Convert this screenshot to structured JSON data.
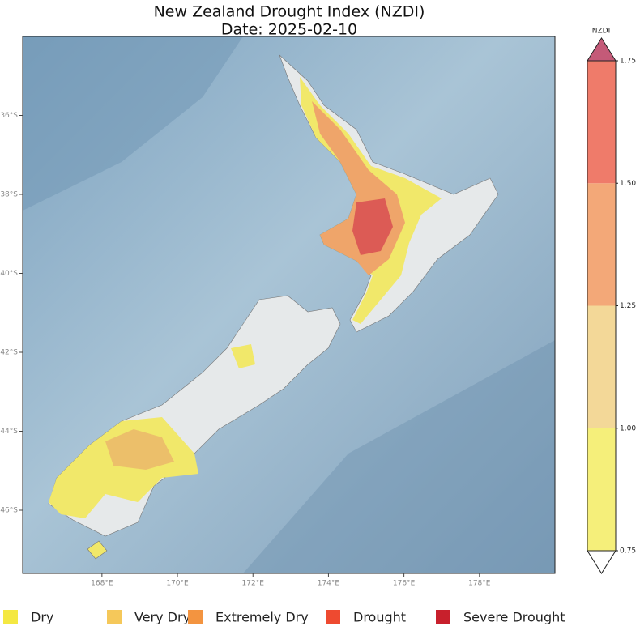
{
  "title": "New Zealand Drought Index (NZDI)",
  "date": "Date: 2025-02-10",
  "map": {
    "xlim": [
      165.9,
      180.0
    ],
    "ylim": [
      34.0,
      47.6
    ],
    "lon_ticks": [
      {
        "value": 168,
        "label": "168°E"
      },
      {
        "value": 170,
        "label": "170°E"
      },
      {
        "value": 172,
        "label": "172°E"
      },
      {
        "value": 174,
        "label": "174°E"
      },
      {
        "value": 176,
        "label": "176°E"
      },
      {
        "value": 178,
        "label": "178°E"
      }
    ],
    "lat_ticks": [
      {
        "value": 36,
        "label": "36°S"
      },
      {
        "value": 38,
        "label": "38°S"
      },
      {
        "value": 40,
        "label": "40°S"
      },
      {
        "value": 42,
        "label": "42°S"
      },
      {
        "value": 44,
        "label": "44°S"
      },
      {
        "value": 46,
        "label": "46°S"
      }
    ]
  },
  "colorbar": {
    "label": "NZDI",
    "lim": [
      0.75,
      1.75
    ],
    "ticks": [
      {
        "value": 0.75,
        "label": "0.75"
      },
      {
        "value": 1.0,
        "label": "1.00"
      },
      {
        "value": 1.25,
        "label": "1.25"
      },
      {
        "value": 1.5,
        "label": "1.50"
      },
      {
        "value": 1.75,
        "label": "1.75"
      }
    ],
    "colors": [
      "#f5ef7a",
      "#f3d898",
      "#f3a878",
      "#ef7b6a"
    ],
    "over_color": "#c45a78",
    "under_color": "#ffffff"
  },
  "legend": [
    {
      "label": "Dry",
      "color": "#f4e842"
    },
    {
      "label": "Very Dry",
      "color": "#f5c85a"
    },
    {
      "label": "Extremely Dry",
      "color": "#f39440"
    },
    {
      "label": "Drought",
      "color": "#ee4a30"
    },
    {
      "label": "Severe Drought",
      "color": "#c8202c"
    }
  ]
}
